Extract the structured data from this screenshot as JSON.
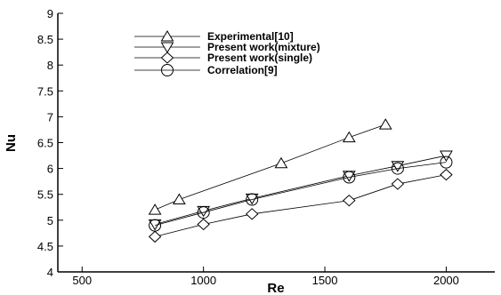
{
  "chart_data": {
    "type": "line",
    "xlabel": "Re",
    "ylabel": "Nu",
    "xlim": [
      400,
      2200
    ],
    "ylim": [
      4,
      9
    ],
    "xticks": [
      500,
      1000,
      1500,
      2000
    ],
    "yticks": [
      4,
      4.5,
      5,
      5.5,
      6,
      6.5,
      7,
      7.5,
      8,
      8.5,
      9
    ],
    "ytick_labels": [
      "4",
      "4.5",
      "5",
      "5.5",
      "6",
      "6.5",
      "7",
      "7.5",
      "8",
      "8.5",
      "9"
    ],
    "grid": false,
    "legend_position": "top-center",
    "series": [
      {
        "name": "Experimental[10]",
        "marker": "triangle-up",
        "x": [
          800,
          900,
          1320,
          1600,
          1750
        ],
        "y": [
          5.2,
          5.4,
          6.1,
          6.6,
          6.85
        ]
      },
      {
        "name": "Present work(mixture)",
        "marker": "triangle-down",
        "x": [
          800,
          1000,
          1200,
          1600,
          1800,
          2000
        ],
        "y": [
          4.92,
          5.18,
          5.42,
          5.86,
          6.05,
          6.25
        ]
      },
      {
        "name": "Present work(single)",
        "marker": "diamond",
        "x": [
          800,
          1000,
          1200,
          1600,
          1800,
          2000
        ],
        "y": [
          4.68,
          4.92,
          5.12,
          5.38,
          5.7,
          5.88
        ]
      },
      {
        "name": "Correlation[9]",
        "marker": "circle",
        "x": [
          800,
          1000,
          1200,
          1600,
          1800,
          2000
        ],
        "y": [
          4.9,
          5.15,
          5.4,
          5.83,
          6.0,
          6.12
        ]
      }
    ]
  }
}
